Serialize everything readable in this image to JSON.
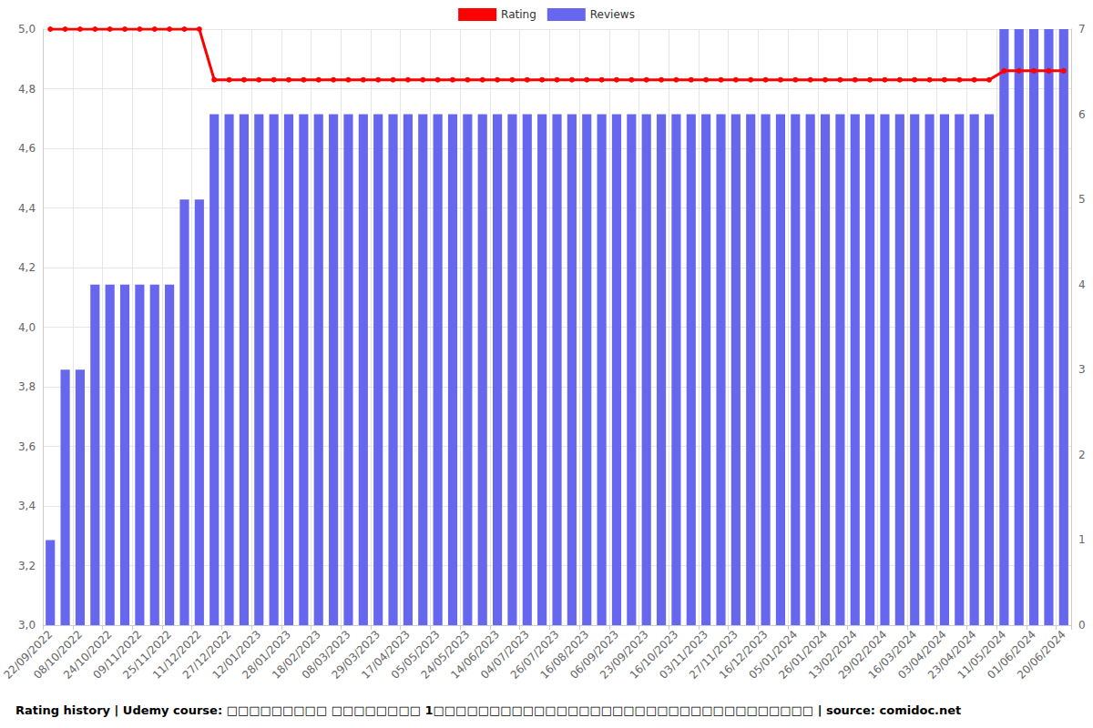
{
  "chart_data": {
    "type": "bar",
    "title": "Rating history | Udemy course: □□□□□□□□□ □□□□□□□□ 1□□□□□□□□□□□□□□□□□□□□□□□□□□□□□□□□□□ | source: comidoc.net",
    "categories": [
      "22/09/2022",
      null,
      "08/10/2022",
      null,
      "24/10/2022",
      null,
      "09/11/2022",
      null,
      "25/11/2022",
      null,
      "11/12/2022",
      null,
      "27/12/2022",
      null,
      "12/01/2023",
      null,
      "28/01/2023",
      null,
      "18/02/2023",
      null,
      "08/03/2023",
      null,
      "29/03/2023",
      null,
      "17/04/2023",
      null,
      "05/05/2023",
      null,
      "24/05/2023",
      null,
      "14/06/2023",
      null,
      "04/07/2023",
      null,
      "26/07/2023",
      null,
      "16/08/2023",
      null,
      "06/09/2023",
      null,
      "23/09/2023",
      null,
      "16/10/2023",
      null,
      "03/11/2023",
      null,
      "27/11/2023",
      null,
      "16/12/2023",
      null,
      "05/01/2024",
      null,
      "26/01/2024",
      null,
      "13/02/2024",
      null,
      "29/02/2024",
      null,
      "16/03/2024",
      null,
      "03/04/2024",
      null,
      "23/04/2024",
      null,
      "11/05/2024",
      null,
      "01/06/2024",
      null,
      "20/06/2024"
    ],
    "series": [
      {
        "name": "Rating",
        "type": "line",
        "color": "#ff0000",
        "marker": "circle",
        "values": [
          5,
          5,
          5,
          5,
          5,
          5,
          5,
          5,
          5,
          5,
          5,
          4.83,
          4.83,
          4.83,
          4.83,
          4.83,
          4.83,
          4.83,
          4.83,
          4.83,
          4.83,
          4.83,
          4.83,
          4.83,
          4.83,
          4.83,
          4.83,
          4.83,
          4.83,
          4.83,
          4.83,
          4.83,
          4.83,
          4.83,
          4.83,
          4.83,
          4.83,
          4.83,
          4.83,
          4.83,
          4.83,
          4.83,
          4.83,
          4.83,
          4.83,
          4.83,
          4.83,
          4.83,
          4.83,
          4.83,
          4.83,
          4.83,
          4.83,
          4.83,
          4.83,
          4.83,
          4.83,
          4.83,
          4.83,
          4.83,
          4.83,
          4.83,
          4.83,
          4.83,
          4.86,
          4.86,
          4.86,
          4.86,
          4.86
        ]
      },
      {
        "name": "Reviews",
        "type": "bar",
        "color": "#6666ee",
        "axis": "y2",
        "values": [
          1,
          3,
          3,
          4,
          4,
          4,
          4,
          4,
          4,
          5,
          5,
          6,
          6,
          6,
          6,
          6,
          6,
          6,
          6,
          6,
          6,
          6,
          6,
          6,
          6,
          6,
          6,
          6,
          6,
          6,
          6,
          6,
          6,
          6,
          6,
          6,
          6,
          6,
          6,
          6,
          6,
          6,
          6,
          6,
          6,
          6,
          6,
          6,
          6,
          6,
          6,
          6,
          6,
          6,
          6,
          6,
          6,
          6,
          6,
          6,
          6,
          6,
          6,
          6,
          7,
          7,
          7,
          7,
          7
        ]
      }
    ],
    "ylim": [
      3,
      5
    ],
    "yticks": [
      {
        "value": 3,
        "label": "3,0"
      },
      {
        "value": 3.2,
        "label": "3,2"
      },
      {
        "value": 3.4,
        "label": "3,4"
      },
      {
        "value": 3.6,
        "label": "3,6"
      },
      {
        "value": 3.8,
        "label": "3,8"
      },
      {
        "value": 4,
        "label": "4,0"
      },
      {
        "value": 4.2,
        "label": "4,2"
      },
      {
        "value": 4.4,
        "label": "4,4"
      },
      {
        "value": 4.6,
        "label": "4,6"
      },
      {
        "value": 4.8,
        "label": "4,8"
      },
      {
        "value": 5,
        "label": "5,0"
      }
    ],
    "y2lim": [
      0,
      7
    ],
    "y2ticks": [
      0,
      1,
      2,
      3,
      4,
      5,
      6,
      7
    ],
    "grid": true,
    "legend": "top"
  }
}
